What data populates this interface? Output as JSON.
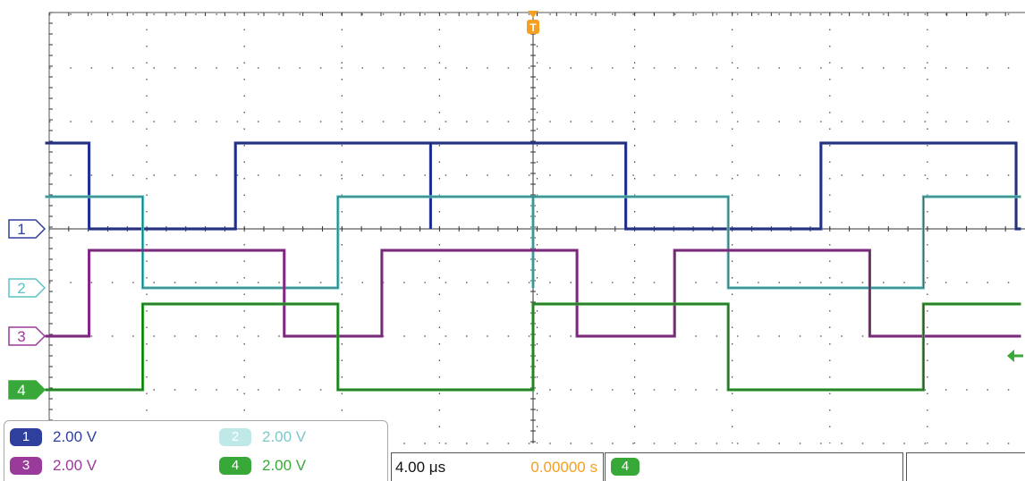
{
  "colors": {
    "ch1": "#2f3f9e",
    "ch2": "#5cc4c4",
    "ch3": "#9a3a9a",
    "ch4": "#38a838",
    "trigger": "#f5a020",
    "grid": "#555555",
    "trace_edge": "#111111"
  },
  "channels": [
    {
      "id": "1",
      "scale": "2.00 V",
      "color": "#2f3f9e",
      "marker_style": "outline"
    },
    {
      "id": "2",
      "scale": "2.00 V",
      "color": "#5cc4c4",
      "marker_style": "outline"
    },
    {
      "id": "3",
      "scale": "2.00 V",
      "color": "#9a3a9a",
      "marker_style": "outline"
    },
    {
      "id": "4",
      "scale": "2.00 V",
      "color": "#38a838",
      "marker_style": "filled"
    }
  ],
  "timebase": "4.00 μs",
  "trigger": {
    "position": "0.00000 s",
    "source": "4",
    "marker": "T",
    "direction": "falling"
  },
  "chart_data": {
    "type": "line",
    "title": "",
    "xlabel": "",
    "ylabel": "",
    "grid": true,
    "time_per_div_us": 4,
    "volts_per_div": 2,
    "xlim_us": [
      -20,
      20
    ],
    "ylim_div": [
      -4,
      4
    ],
    "series": [
      {
        "name": "1",
        "levels_div": [
          0,
          1.6
        ],
        "period_us": 16,
        "high_intervals_us": [
          [
            -20,
            -18.2
          ],
          [
            -12.2,
            -4.2
          ],
          [
            -4.2,
            3.8
          ],
          [
            11.8,
            19.8
          ]
        ]
      },
      {
        "name": "2",
        "levels_div": [
          -1.1,
          0.6
        ],
        "period_us": 16,
        "high_intervals_us": [
          [
            -20,
            -16
          ],
          [
            -8,
            0
          ],
          [
            0,
            8
          ],
          [
            16,
            20
          ]
        ]
      },
      {
        "name": "3",
        "levels_div": [
          -2,
          -0.4
        ],
        "period_us": 16,
        "high_intervals_us": [
          [
            -18.2,
            -10.2
          ],
          [
            -6.2,
            1.8
          ],
          [
            5.8,
            13.8
          ]
        ]
      },
      {
        "name": "4",
        "levels_div": [
          -3,
          -1.4
        ],
        "period_us": 16,
        "high_intervals_us": [
          [
            -16,
            -8
          ],
          [
            0,
            8
          ],
          [
            16,
            20
          ]
        ]
      }
    ]
  }
}
